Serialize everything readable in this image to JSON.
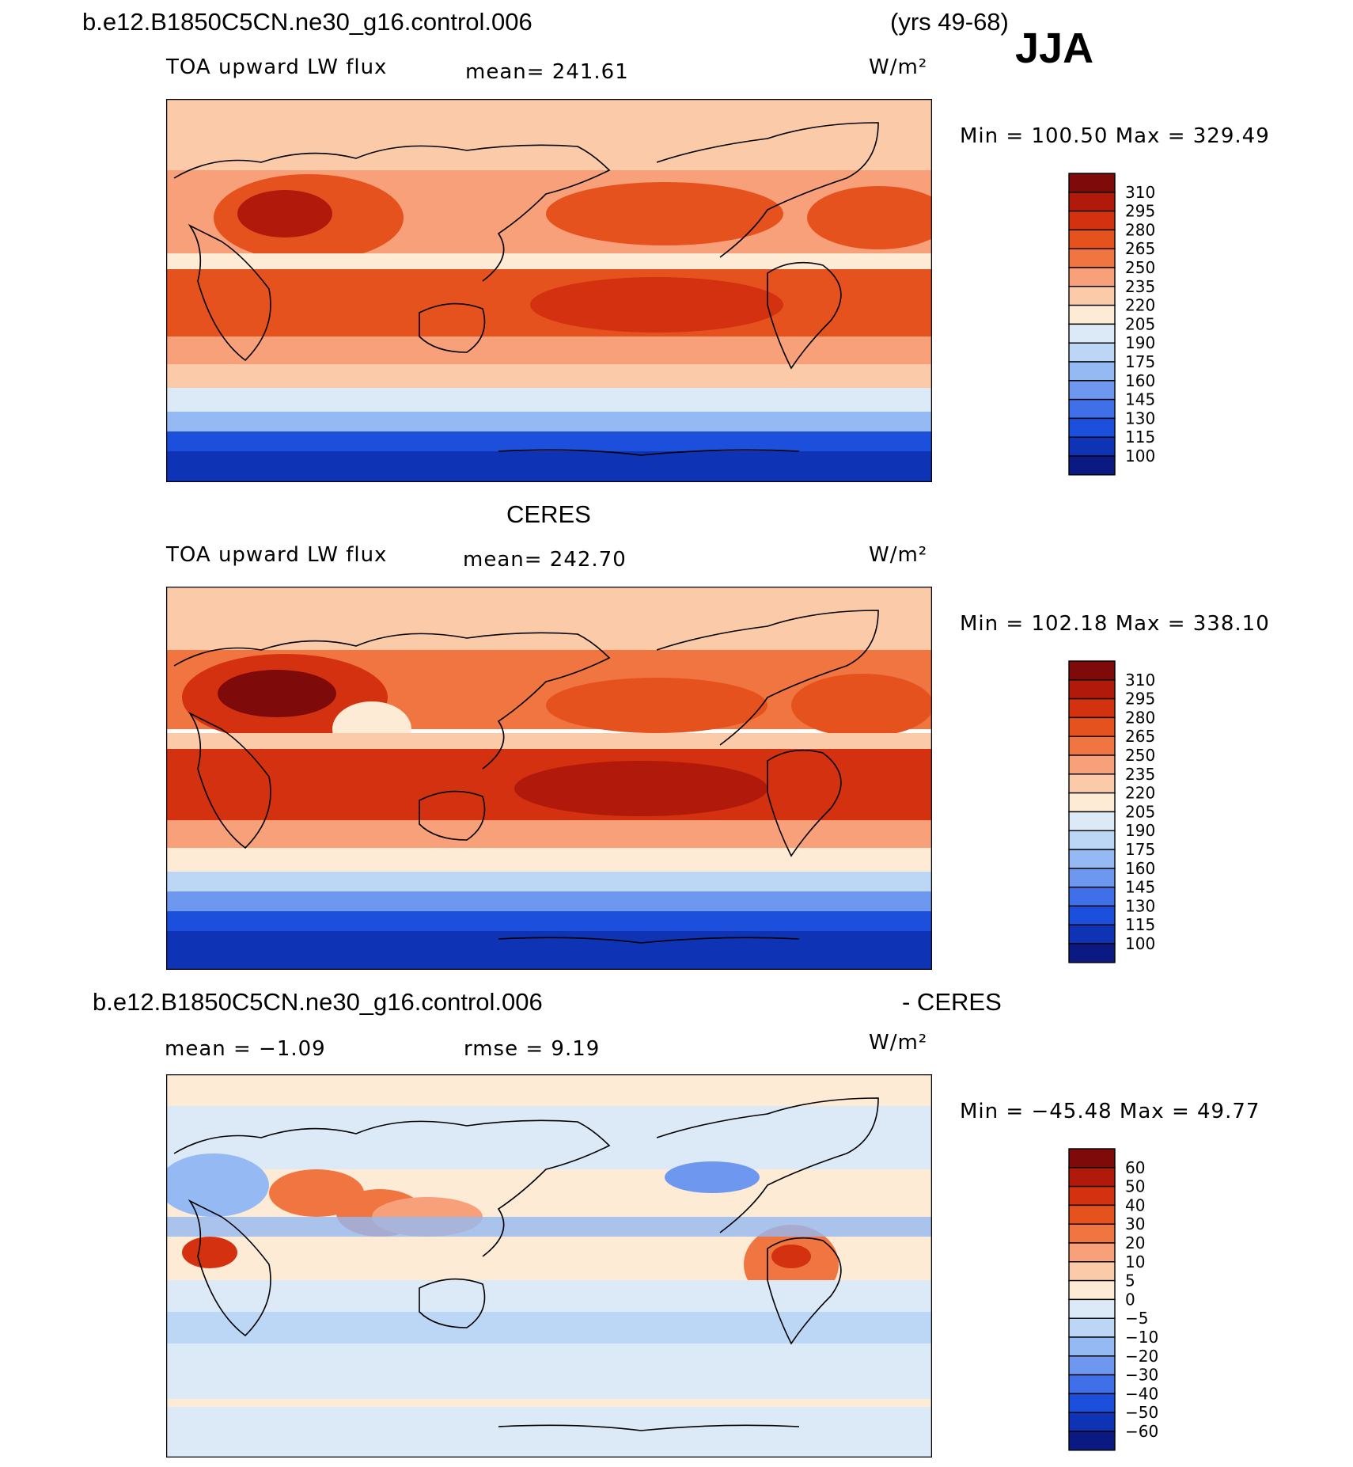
{
  "header": {
    "case_name": "b.e12.B1850C5CN.ne30_g16.control.006",
    "years": "(yrs 49-68)",
    "season": "JJA"
  },
  "panels": [
    {
      "id": "model",
      "title": "",
      "variable": "TOA upward LW flux",
      "mean_label": "mean= 241.61",
      "units": "W/m²",
      "minmax": "Min  =  100.50  Max  =  329.49",
      "colorbar_labels": [
        "310",
        "295",
        "280",
        "265",
        "250",
        "235",
        "220",
        "205",
        "190",
        "175",
        "160",
        "145",
        "130",
        "115",
        "100"
      ],
      "colors": [
        "#7f0a0a",
        "#b11a0a",
        "#d3310f",
        "#e6521e",
        "#f07540",
        "#f7a07a",
        "#fbcaa8",
        "#fdebd6",
        "#dceaf8",
        "#bcd7f6",
        "#95b9f3",
        "#6e98ef",
        "#3f70ea",
        "#1b4fdc",
        "#0f33b5",
        "#0a1a82"
      ]
    },
    {
      "id": "obs",
      "title": "CERES",
      "variable": "TOA upward LW flux",
      "mean_label": "mean= 242.70",
      "units": "W/m²",
      "minmax": "Min  =  102.18  Max  =  338.10",
      "colorbar_labels": [
        "310",
        "295",
        "280",
        "265",
        "250",
        "235",
        "220",
        "205",
        "190",
        "175",
        "160",
        "145",
        "130",
        "115",
        "100"
      ],
      "colors": [
        "#7f0a0a",
        "#b11a0a",
        "#d3310f",
        "#e6521e",
        "#f07540",
        "#f7a07a",
        "#fbcaa8",
        "#fdebd6",
        "#dceaf8",
        "#bcd7f6",
        "#95b9f3",
        "#6e98ef",
        "#3f70ea",
        "#1b4fdc",
        "#0f33b5",
        "#0a1a82"
      ]
    },
    {
      "id": "diff",
      "title_left": "b.e12.B1850C5CN.ne30_g16.control.006",
      "title_right": "- CERES",
      "mean_label": "mean =   −1.09",
      "rmse_label": "rmse =    9.19",
      "units": "W/m²",
      "minmax": "Min  =  −45.48  Max  =   49.77",
      "colorbar_labels": [
        "60",
        "50",
        "40",
        "30",
        "20",
        "10",
        "5",
        "0",
        "−5",
        "−10",
        "−20",
        "−30",
        "−40",
        "−50",
        "−60"
      ],
      "colors": [
        "#7f0a0a",
        "#b11a0a",
        "#d3310f",
        "#e6521e",
        "#f07540",
        "#f7a07a",
        "#fbcaa8",
        "#fdebd6",
        "#dceaf8",
        "#bcd7f6",
        "#95b9f3",
        "#6e98ef",
        "#3f70ea",
        "#1b4fdc",
        "#0f33b5",
        "#0a1a82"
      ]
    }
  ]
}
